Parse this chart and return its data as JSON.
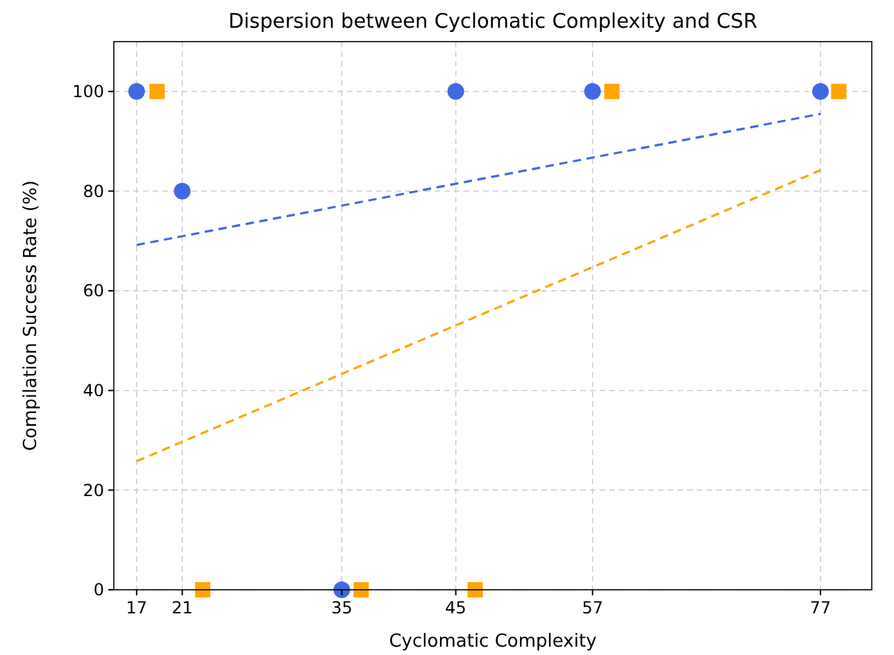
{
  "chart_data": {
    "type": "scatter",
    "title": "Dispersion between Cyclomatic Complexity and CSR",
    "xlabel": "Cyclomatic Complexity",
    "ylabel": "Compilation Success Rate (%)",
    "xlim": [
      15,
      81.5
    ],
    "xticks": [
      17,
      21,
      35,
      45,
      57,
      77
    ],
    "ylim": [
      0,
      110
    ],
    "yticks": [
      0,
      20,
      40,
      60,
      80,
      100
    ],
    "grid": true,
    "series": [
      {
        "color": "#ffa500",
        "marker": "square",
        "x": [
          18.8,
          22.8,
          36.7,
          46.7,
          58.7,
          78.6
        ],
        "values": [
          100,
          0,
          0,
          0,
          100,
          100
        ]
      },
      {
        "color": "#4169e1",
        "marker": "circle",
        "x": [
          17,
          21,
          35,
          45,
          57,
          77
        ],
        "values": [
          100,
          80,
          0,
          100,
          100,
          100
        ]
      },
      {
        "type": "line",
        "color": "#4169e1",
        "line_style": "dashed",
        "marker": "none",
        "x": [
          17,
          77
        ],
        "values": [
          69.2,
          95.5
        ]
      },
      {
        "type": "line",
        "color": "#ffa500",
        "line_style": "dashed",
        "marker": "none",
        "x": [
          17,
          77
        ],
        "values": [
          25.8,
          84.2
        ]
      }
    ]
  }
}
